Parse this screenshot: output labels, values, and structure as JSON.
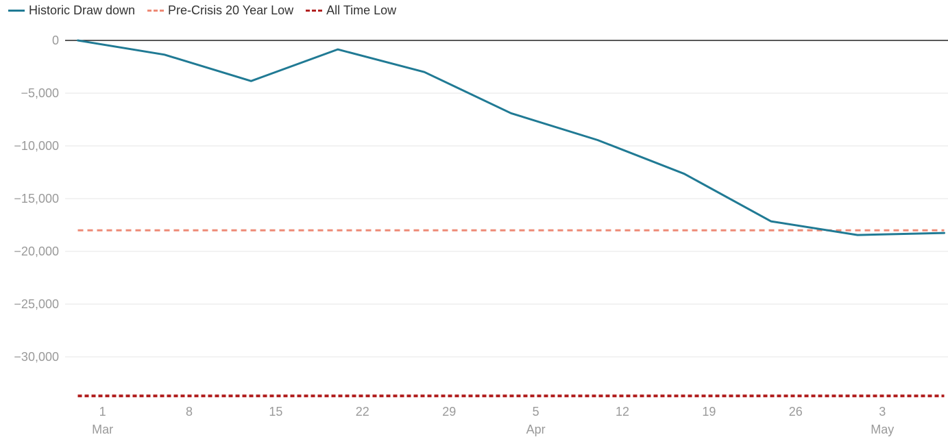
{
  "chart_data": {
    "type": "line",
    "title": "",
    "xlabel": "",
    "ylabel": "",
    "ylim": [
      -34000,
      0
    ],
    "y_ticks": [
      0,
      -5000,
      -10000,
      -15000,
      -20000,
      -25000,
      -30000
    ],
    "y_tick_labels": [
      "0",
      "−5,000",
      "−10,000",
      "−15,000",
      "−20,000",
      "−25,000",
      "−30,000"
    ],
    "x_ticks": [
      {
        "day": 0,
        "label": "1",
        "month": "Mar"
      },
      {
        "day": 7,
        "label": "8",
        "month": ""
      },
      {
        "day": 14,
        "label": "15",
        "month": ""
      },
      {
        "day": 21,
        "label": "22",
        "month": ""
      },
      {
        "day": 28,
        "label": "29",
        "month": ""
      },
      {
        "day": 35,
        "label": "5",
        "month": "Apr"
      },
      {
        "day": 42,
        "label": "12",
        "month": ""
      },
      {
        "day": 49,
        "label": "19",
        "month": ""
      },
      {
        "day": 56,
        "label": "26",
        "month": ""
      },
      {
        "day": 63,
        "label": "3",
        "month": "May"
      }
    ],
    "x_range_days": [
      -2,
      68
    ],
    "grid": true,
    "legend_position": "top-left",
    "series": [
      {
        "name": "Historic Draw down",
        "style": "solid",
        "color": "#207a94",
        "x_days": [
          -2,
          5,
          12,
          19,
          26,
          33,
          40,
          47,
          54,
          61,
          68
        ],
        "values": [
          0,
          -1350,
          -3850,
          -850,
          -3000,
          -6900,
          -9450,
          -12650,
          -17150,
          -18450,
          -18250
        ]
      },
      {
        "name": "Pre-Crisis 20 Year Low",
        "style": "dashed",
        "color": "#ee8a76",
        "value": -18000
      },
      {
        "name": "All Time Low",
        "style": "dotted",
        "color": "#b22222",
        "value": -33700
      }
    ]
  }
}
